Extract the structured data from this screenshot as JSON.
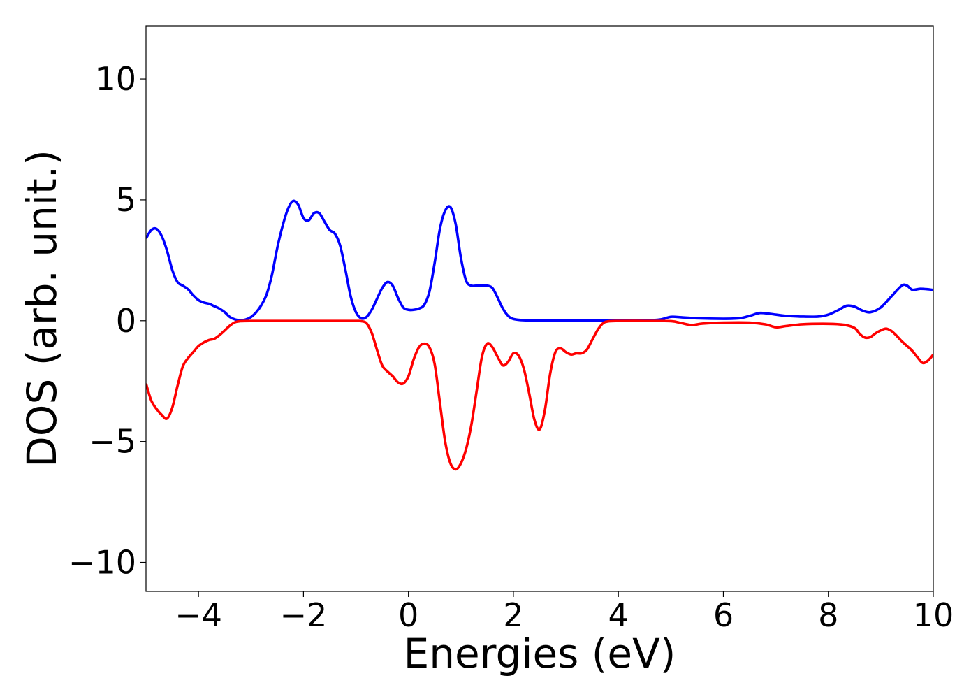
{
  "chart_data": {
    "type": "line",
    "title": "",
    "xlabel": "Energies (eV)",
    "ylabel": "DOS (arb. unit.)",
    "xlim": [
      -5,
      10
    ],
    "ylim": [
      -11.2,
      12.2
    ],
    "xticks": [
      -4,
      -2,
      0,
      2,
      4,
      6,
      8,
      10
    ],
    "yticks": [
      -10,
      -5,
      0,
      5,
      10
    ],
    "xtick_labels": [
      "−4",
      "−2",
      "0",
      "2",
      "4",
      "6",
      "8",
      "10"
    ],
    "ytick_labels": [
      "−10",
      "−5",
      "0",
      "5",
      "10"
    ],
    "grid": false,
    "legend": "none",
    "series": [
      {
        "color": "#0000ff",
        "points": [
          [
            -5.0,
            3.4
          ],
          [
            -4.9,
            3.75
          ],
          [
            -4.8,
            3.8
          ],
          [
            -4.7,
            3.5
          ],
          [
            -4.6,
            2.9
          ],
          [
            -4.5,
            2.1
          ],
          [
            -4.4,
            1.6
          ],
          [
            -4.3,
            1.45
          ],
          [
            -4.2,
            1.3
          ],
          [
            -4.1,
            1.05
          ],
          [
            -4.0,
            0.85
          ],
          [
            -3.9,
            0.75
          ],
          [
            -3.8,
            0.7
          ],
          [
            -3.7,
            0.6
          ],
          [
            -3.6,
            0.5
          ],
          [
            -3.5,
            0.35
          ],
          [
            -3.4,
            0.15
          ],
          [
            -3.3,
            0.05
          ],
          [
            -3.2,
            0.02
          ],
          [
            -3.1,
            0.05
          ],
          [
            -3.0,
            0.15
          ],
          [
            -2.9,
            0.35
          ],
          [
            -2.8,
            0.65
          ],
          [
            -2.7,
            1.1
          ],
          [
            -2.6,
            1.9
          ],
          [
            -2.5,
            3.0
          ],
          [
            -2.4,
            3.9
          ],
          [
            -2.3,
            4.6
          ],
          [
            -2.2,
            4.95
          ],
          [
            -2.1,
            4.8
          ],
          [
            -2.0,
            4.25
          ],
          [
            -1.9,
            4.15
          ],
          [
            -1.8,
            4.45
          ],
          [
            -1.7,
            4.45
          ],
          [
            -1.6,
            4.1
          ],
          [
            -1.5,
            3.75
          ],
          [
            -1.4,
            3.6
          ],
          [
            -1.3,
            3.1
          ],
          [
            -1.2,
            2.1
          ],
          [
            -1.1,
            1.0
          ],
          [
            -1.0,
            0.35
          ],
          [
            -0.9,
            0.1
          ],
          [
            -0.8,
            0.15
          ],
          [
            -0.7,
            0.45
          ],
          [
            -0.6,
            0.9
          ],
          [
            -0.5,
            1.35
          ],
          [
            -0.4,
            1.6
          ],
          [
            -0.3,
            1.45
          ],
          [
            -0.2,
            0.95
          ],
          [
            -0.1,
            0.55
          ],
          [
            0.0,
            0.45
          ],
          [
            0.1,
            0.45
          ],
          [
            0.2,
            0.5
          ],
          [
            0.3,
            0.65
          ],
          [
            0.4,
            1.2
          ],
          [
            0.5,
            2.4
          ],
          [
            0.6,
            3.8
          ],
          [
            0.7,
            4.55
          ],
          [
            0.8,
            4.7
          ],
          [
            0.9,
            4.0
          ],
          [
            1.0,
            2.6
          ],
          [
            1.1,
            1.65
          ],
          [
            1.2,
            1.45
          ],
          [
            1.3,
            1.45
          ],
          [
            1.4,
            1.45
          ],
          [
            1.5,
            1.45
          ],
          [
            1.6,
            1.35
          ],
          [
            1.7,
            0.95
          ],
          [
            1.8,
            0.5
          ],
          [
            1.9,
            0.2
          ],
          [
            2.0,
            0.07
          ],
          [
            2.2,
            0.02
          ],
          [
            2.5,
            0.01
          ],
          [
            3.0,
            0.01
          ],
          [
            3.5,
            0.01
          ],
          [
            4.0,
            0.01
          ],
          [
            4.5,
            0.01
          ],
          [
            4.8,
            0.05
          ],
          [
            5.0,
            0.16
          ],
          [
            5.2,
            0.14
          ],
          [
            5.5,
            0.1
          ],
          [
            6.0,
            0.08
          ],
          [
            6.3,
            0.1
          ],
          [
            6.5,
            0.2
          ],
          [
            6.7,
            0.32
          ],
          [
            6.9,
            0.28
          ],
          [
            7.2,
            0.2
          ],
          [
            7.5,
            0.17
          ],
          [
            7.8,
            0.17
          ],
          [
            8.0,
            0.25
          ],
          [
            8.2,
            0.45
          ],
          [
            8.35,
            0.62
          ],
          [
            8.5,
            0.58
          ],
          [
            8.65,
            0.42
          ],
          [
            8.8,
            0.35
          ],
          [
            9.0,
            0.55
          ],
          [
            9.2,
            1.0
          ],
          [
            9.4,
            1.45
          ],
          [
            9.5,
            1.45
          ],
          [
            9.6,
            1.28
          ],
          [
            9.75,
            1.32
          ],
          [
            9.9,
            1.3
          ],
          [
            10.0,
            1.27
          ]
        ]
      },
      {
        "color": "#ff0000",
        "points": [
          [
            -5.0,
            -2.6
          ],
          [
            -4.9,
            -3.3
          ],
          [
            -4.8,
            -3.65
          ],
          [
            -4.7,
            -3.9
          ],
          [
            -4.6,
            -4.05
          ],
          [
            -4.5,
            -3.6
          ],
          [
            -4.4,
            -2.7
          ],
          [
            -4.3,
            -1.9
          ],
          [
            -4.2,
            -1.55
          ],
          [
            -4.1,
            -1.3
          ],
          [
            -4.0,
            -1.05
          ],
          [
            -3.9,
            -0.9
          ],
          [
            -3.8,
            -0.8
          ],
          [
            -3.7,
            -0.75
          ],
          [
            -3.6,
            -0.6
          ],
          [
            -3.5,
            -0.4
          ],
          [
            -3.4,
            -0.2
          ],
          [
            -3.3,
            -0.06
          ],
          [
            -3.2,
            -0.02
          ],
          [
            -3.0,
            -0.01
          ],
          [
            -2.5,
            -0.01
          ],
          [
            -2.0,
            -0.01
          ],
          [
            -1.5,
            -0.01
          ],
          [
            -1.0,
            -0.01
          ],
          [
            -0.9,
            -0.02
          ],
          [
            -0.8,
            -0.1
          ],
          [
            -0.7,
            -0.5
          ],
          [
            -0.6,
            -1.2
          ],
          [
            -0.5,
            -1.85
          ],
          [
            -0.4,
            -2.1
          ],
          [
            -0.3,
            -2.3
          ],
          [
            -0.2,
            -2.55
          ],
          [
            -0.1,
            -2.6
          ],
          [
            0.0,
            -2.3
          ],
          [
            0.1,
            -1.6
          ],
          [
            0.2,
            -1.1
          ],
          [
            0.3,
            -0.95
          ],
          [
            0.4,
            -1.1
          ],
          [
            0.5,
            -1.8
          ],
          [
            0.6,
            -3.4
          ],
          [
            0.7,
            -5.0
          ],
          [
            0.8,
            -5.9
          ],
          [
            0.9,
            -6.15
          ],
          [
            1.0,
            -5.9
          ],
          [
            1.1,
            -5.3
          ],
          [
            1.2,
            -4.3
          ],
          [
            1.3,
            -2.9
          ],
          [
            1.4,
            -1.5
          ],
          [
            1.5,
            -0.95
          ],
          [
            1.6,
            -1.1
          ],
          [
            1.7,
            -1.5
          ],
          [
            1.8,
            -1.85
          ],
          [
            1.9,
            -1.7
          ],
          [
            2.0,
            -1.35
          ],
          [
            2.1,
            -1.45
          ],
          [
            2.2,
            -2.0
          ],
          [
            2.3,
            -3.0
          ],
          [
            2.4,
            -4.1
          ],
          [
            2.5,
            -4.5
          ],
          [
            2.6,
            -3.7
          ],
          [
            2.7,
            -2.2
          ],
          [
            2.8,
            -1.3
          ],
          [
            2.9,
            -1.15
          ],
          [
            3.0,
            -1.3
          ],
          [
            3.1,
            -1.4
          ],
          [
            3.2,
            -1.35
          ],
          [
            3.3,
            -1.35
          ],
          [
            3.4,
            -1.2
          ],
          [
            3.5,
            -0.8
          ],
          [
            3.6,
            -0.4
          ],
          [
            3.7,
            -0.12
          ],
          [
            3.8,
            -0.03
          ],
          [
            4.0,
            -0.01
          ],
          [
            4.5,
            -0.01
          ],
          [
            5.0,
            -0.02
          ],
          [
            5.2,
            -0.1
          ],
          [
            5.4,
            -0.18
          ],
          [
            5.6,
            -0.12
          ],
          [
            6.0,
            -0.08
          ],
          [
            6.5,
            -0.08
          ],
          [
            6.8,
            -0.15
          ],
          [
            7.0,
            -0.27
          ],
          [
            7.2,
            -0.22
          ],
          [
            7.5,
            -0.15
          ],
          [
            8.0,
            -0.13
          ],
          [
            8.3,
            -0.17
          ],
          [
            8.5,
            -0.3
          ],
          [
            8.6,
            -0.55
          ],
          [
            8.7,
            -0.7
          ],
          [
            8.8,
            -0.68
          ],
          [
            8.9,
            -0.52
          ],
          [
            9.0,
            -0.4
          ],
          [
            9.1,
            -0.33
          ],
          [
            9.2,
            -0.42
          ],
          [
            9.3,
            -0.62
          ],
          [
            9.4,
            -0.85
          ],
          [
            9.5,
            -1.05
          ],
          [
            9.6,
            -1.25
          ],
          [
            9.7,
            -1.52
          ],
          [
            9.8,
            -1.75
          ],
          [
            9.9,
            -1.65
          ],
          [
            10.0,
            -1.4
          ]
        ]
      }
    ]
  }
}
